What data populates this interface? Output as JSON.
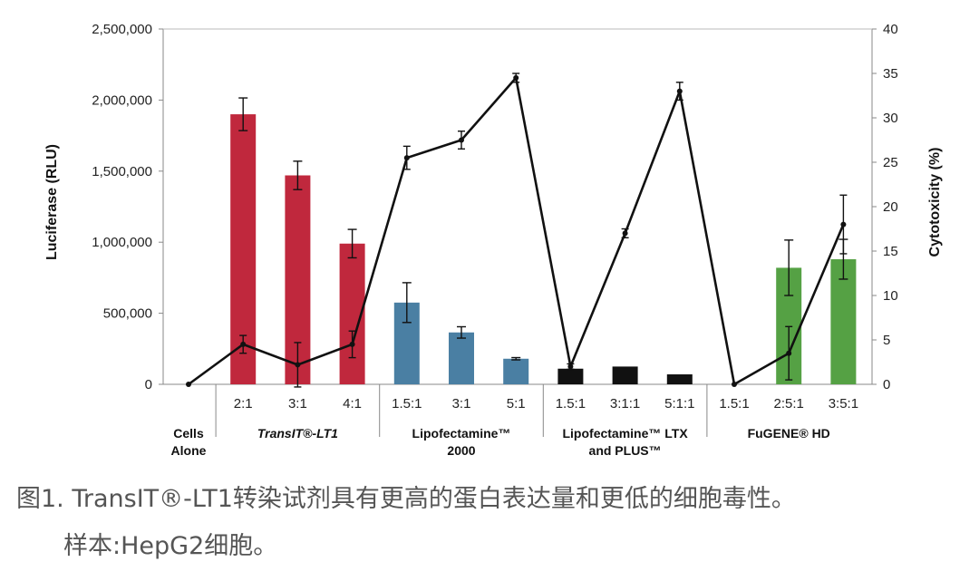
{
  "chart_data": {
    "type": "bar",
    "ylabel": "Luciferase (RLU)",
    "y2label": "Cytotoxicity (%)",
    "ylim": [
      0,
      2500000
    ],
    "y2lim": [
      0,
      40
    ],
    "yticks": [
      "0",
      "500,000",
      "1,000,000",
      "1,500,000",
      "2,000,000",
      "2,500,000"
    ],
    "y2ticks": [
      "0",
      "5",
      "10",
      "15",
      "20",
      "25",
      "30",
      "35",
      "40"
    ],
    "categories": [
      "",
      "2:1",
      "3:1",
      "4:1",
      "1.5:1",
      "3:1",
      "5:1",
      "1.5:1",
      "3:1:1",
      "5:1:1",
      "1.5:1",
      "2:5:1",
      "3:5:1"
    ],
    "groups": [
      {
        "label": "Cells Alone",
        "start": 0,
        "end": 0
      },
      {
        "label": "TransIT®-LT1",
        "start": 1,
        "end": 3
      },
      {
        "label": "Lipofectamine™ 2000",
        "start": 4,
        "end": 6
      },
      {
        "label": "Lipofectamine™ LTX and PLUS™",
        "start": 7,
        "end": 9
      },
      {
        "label": "FuGENE® HD",
        "start": 10,
        "end": 12
      }
    ],
    "series": [
      {
        "name": "Luciferase",
        "kind": "bar",
        "axis": "left",
        "values": [
          0,
          1900000,
          1470000,
          990000,
          575000,
          365000,
          180000,
          110000,
          125000,
          70000,
          0,
          820000,
          880000
        ],
        "errors": [
          0,
          115000,
          100000,
          100000,
          140000,
          40000,
          8000,
          0,
          0,
          0,
          0,
          195000,
          140000
        ],
        "colors": [
          "#c0283d",
          "#c0283d",
          "#c0283d",
          "#c0283d",
          "#4a7fa3",
          "#4a7fa3",
          "#4a7fa3",
          "#111111",
          "#111111",
          "#111111",
          "#55a144",
          "#55a144",
          "#55a144"
        ]
      },
      {
        "name": "Cytotoxicity",
        "kind": "line",
        "axis": "right",
        "values": [
          0,
          4.5,
          2.2,
          4.5,
          25.5,
          27.5,
          34.5,
          2,
          17,
          33,
          0,
          3.5,
          18
        ],
        "errors": [
          0,
          1,
          2.5,
          1.5,
          1.3,
          1,
          0.5,
          0.3,
          0.5,
          1,
          0,
          3,
          3.3
        ]
      }
    ]
  },
  "caption": {
    "line1": "图1. TransIT®-LT1转染试剂具有更高的蛋白表达量和更低的细胞毒性。",
    "line2": "样本:HepG2细胞。"
  }
}
